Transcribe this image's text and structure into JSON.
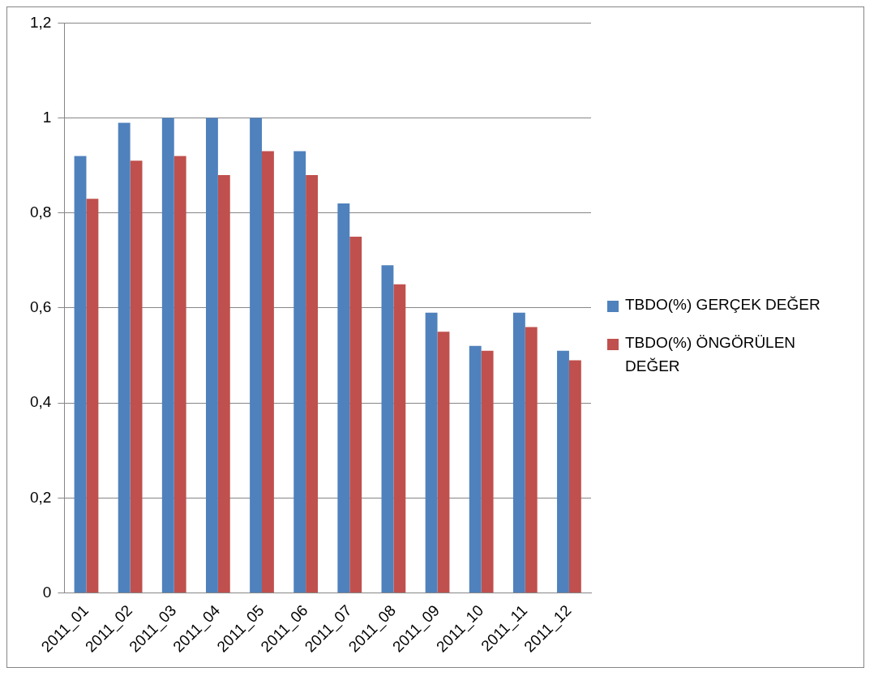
{
  "chart_data": {
    "type": "bar",
    "categories": [
      "2011_01",
      "2011_02",
      "2011_03",
      "2011_04",
      "2011_05",
      "2011_06",
      "2011_07",
      "2011_08",
      "2011_09",
      "2011_10",
      "2011_11",
      "2011_12"
    ],
    "series": [
      {
        "name": "TBDO(%) GERÇEK DEĞER",
        "color": "#4f81bd",
        "values": [
          0.92,
          0.99,
          1.0,
          1.0,
          1.0,
          0.93,
          0.82,
          0.69,
          0.59,
          0.52,
          0.59,
          0.51
        ]
      },
      {
        "name": "TBDO(%) ÖNGÖRÜLEN DEĞER",
        "color": "#c0504d",
        "values": [
          0.83,
          0.91,
          0.92,
          0.88,
          0.93,
          0.88,
          0.75,
          0.65,
          0.55,
          0.51,
          0.56,
          0.49
        ]
      }
    ],
    "ylim": [
      0,
      1.2
    ],
    "yticks": [
      0,
      {
        "value": 0.2,
        "label": "0,2"
      },
      {
        "value": 0.4,
        "label": "0,4"
      },
      {
        "value": 0.6,
        "label": "0,6"
      },
      {
        "value": 0.8,
        "label": "0,8"
      },
      1,
      {
        "value": 1.2,
        "label": "1,2"
      }
    ],
    "grid": "y",
    "legend": "right"
  }
}
